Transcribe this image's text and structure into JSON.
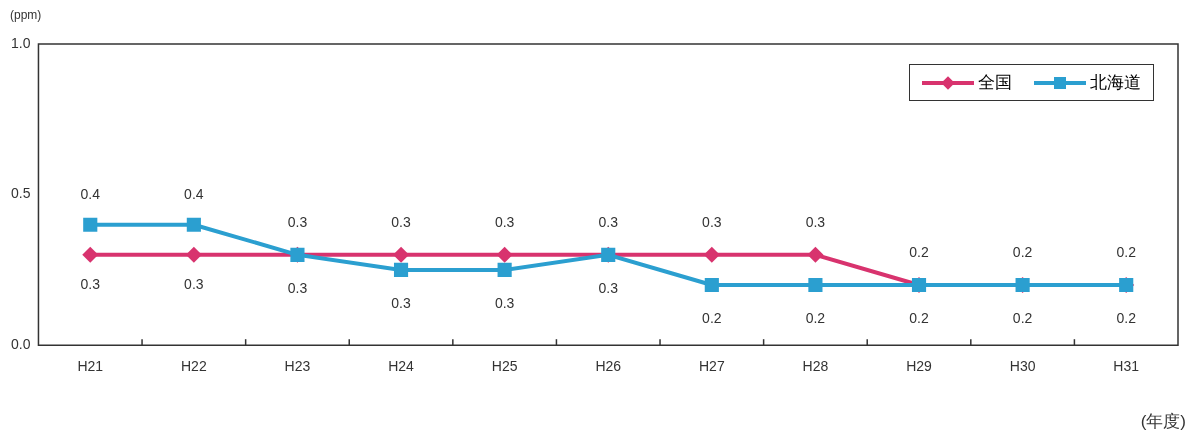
{
  "chart_data": {
    "type": "line",
    "ylabel": "(ppm)",
    "xlabel": "(年度)",
    "categories": [
      "H21",
      "H22",
      "H23",
      "H24",
      "H25",
      "H26",
      "H27",
      "H28",
      "H29",
      "H30",
      "H31"
    ],
    "ylim": [
      0,
      1
    ],
    "yticks": [
      {
        "value": 0,
        "label": "0.0"
      },
      {
        "value": 0.5,
        "label": "0.5"
      },
      {
        "value": 1,
        "label": "1.0"
      }
    ],
    "grid": false,
    "legend": "top right",
    "line_style": "solid",
    "series": [
      {
        "name": "全国",
        "color": "#d8336e",
        "marker": "diamond",
        "values": [
          0.3,
          0.3,
          0.3,
          0.3,
          0.3,
          0.3,
          0.3,
          0.3,
          0.2,
          0.2,
          0.2
        ],
        "value_labels": [
          "0.3",
          "0.3",
          "0.3",
          "0.3",
          "0.3",
          "0.3",
          "0.3",
          "0.3",
          "0.2",
          "0.2",
          "0.2"
        ]
      },
      {
        "name": "北海道",
        "color": "#2b9fd0",
        "marker": "square",
        "values": [
          0.4,
          0.4,
          0.3,
          0.25,
          0.25,
          0.3,
          0.2,
          0.2,
          0.2,
          0.2,
          0.2
        ],
        "value_labels": [
          "0.4",
          "0.4",
          "0.3",
          "0.3",
          "0.3",
          "0.3",
          "0.2",
          "0.2",
          "0.2",
          "0.2",
          "0.2"
        ]
      }
    ]
  }
}
